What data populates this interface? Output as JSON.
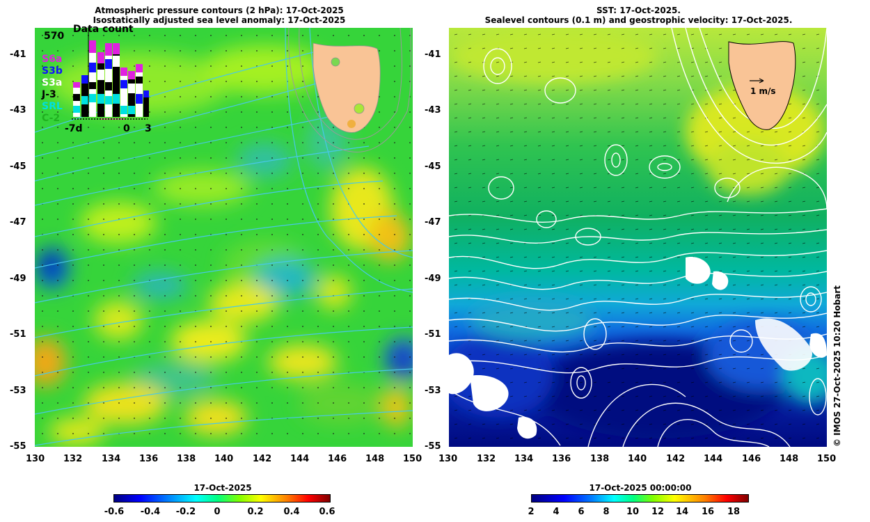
{
  "left_panel": {
    "title_line1": "Atmospheric pressure contours (2 hPa): 17-Oct-2025",
    "title_line2": "Isostatically adjusted sea level anomaly: 17-Oct-2025",
    "y_ticks": [
      "-41",
      "-43",
      "-45",
      "-47",
      "-49",
      "-51",
      "-53",
      "-55"
    ],
    "x_ticks": [
      "130",
      "132",
      "134",
      "136",
      "138",
      "140",
      "142",
      "144",
      "146",
      "148",
      "150"
    ],
    "inset": {
      "max_count": "570",
      "title": "Data count",
      "missions": [
        {
          "label": "S6a",
          "color": "#e020e0"
        },
        {
          "label": "S3b",
          "color": "#1010ff"
        },
        {
          "label": "S3a",
          "color": "#ffffff"
        },
        {
          "label": "J-3",
          "color": "#000000"
        },
        {
          "label": "SRL",
          "color": "#00e0e0"
        },
        {
          "label": "C-2",
          "color": "#20b020"
        }
      ],
      "x_start": "-7d",
      "x_zero": "0",
      "x_end": "3"
    },
    "colorbar": {
      "title": "17-Oct-2025",
      "ticks": [
        "-0.6",
        "-0.4",
        "-0.2",
        "0",
        "0.2",
        "0.4",
        "0.6"
      ]
    }
  },
  "right_panel": {
    "title_line1": "SST: 17-Oct-2025.",
    "title_line2": "Sealevel contours (0.1 m) and geostrophic velocity: 17-Oct-2025.",
    "y_ticks": [
      "-41",
      "-43",
      "-45",
      "-47",
      "-49",
      "-51",
      "-53",
      "-55"
    ],
    "x_ticks": [
      "130",
      "132",
      "134",
      "136",
      "138",
      "140",
      "142",
      "144",
      "146",
      "148",
      "150"
    ],
    "velocity_scale_label": "1 m/s",
    "colorbar": {
      "title": "17-Oct-2025 00:00:00",
      "ticks": [
        "2",
        "4",
        "6",
        "8",
        "10",
        "12",
        "14",
        "16",
        "18"
      ]
    }
  },
  "credit": "© IMOS 27-Oct-2025 10:20 Hobart",
  "colors": {
    "land": "#f9c496",
    "sla_ramp": [
      "#00007f",
      "#0000ff",
      "#0080ff",
      "#00ffff",
      "#00ff80",
      "#80ff00",
      "#ffff00",
      "#ff8000",
      "#ff0000",
      "#7f0000"
    ],
    "contour_cyan": "#40c8e8",
    "contour_white": "#ffffff"
  }
}
